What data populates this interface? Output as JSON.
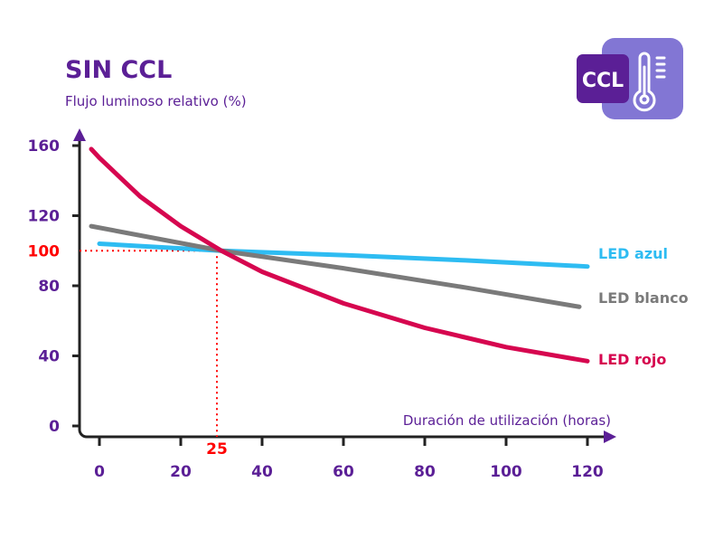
{
  "chart_data": {
    "type": "line",
    "title": "SIN CCL",
    "ylabel": "Flujo luminoso relativo (%)",
    "xlabel": "Duración de utilización (horas)",
    "xlim": [
      -2,
      120
    ],
    "ylim": [
      0,
      160
    ],
    "x_ticks": [
      "0",
      "20",
      "40",
      "60",
      "80",
      "100",
      "120"
    ],
    "y_ticks": [
      "0",
      "40",
      "80",
      "120",
      "160"
    ],
    "grid": false,
    "reference": {
      "y": "100",
      "x": "25",
      "color": "#ff0000"
    },
    "series": [
      {
        "name": "LED azul",
        "color": "#2ebcf2",
        "x": [
          0,
          30,
          60,
          90,
          120
        ],
        "y": [
          104,
          100,
          97.5,
          94.5,
          91
        ]
      },
      {
        "name": "LED blanco",
        "color": "#7a7a7a",
        "x": [
          -2,
          30,
          60,
          90,
          118
        ],
        "y": [
          114,
          100,
          90,
          79,
          68
        ]
      },
      {
        "name": "LED rojo",
        "color": "#d6064f",
        "x": [
          -2,
          0,
          10,
          20,
          30,
          40,
          60,
          80,
          100,
          120
        ],
        "y": [
          158,
          153,
          131,
          114,
          100,
          88,
          70,
          56,
          45,
          37
        ]
      }
    ]
  },
  "badge": {
    "text": "CCL",
    "icon": "thermometer-icon",
    "dark": "#5b1f96",
    "light": "#8276d4"
  }
}
